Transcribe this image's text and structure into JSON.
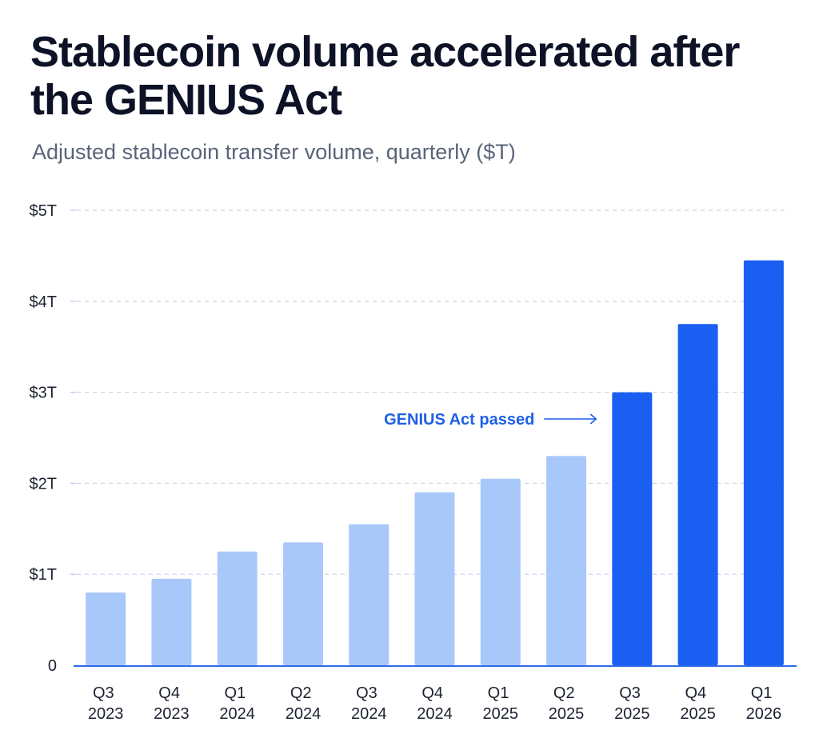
{
  "chart_data": {
    "type": "bar",
    "title": "Stablecoin volume accelerated after the GENIUS Act",
    "subtitle": "Adjusted stablecoin transfer volume, quarterly ($T)",
    "xlabel": "",
    "ylabel": "",
    "categories": [
      "Q3 2023",
      "Q4 2023",
      "Q1 2024",
      "Q2 2024",
      "Q3 2024",
      "Q4 2024",
      "Q1 2025",
      "Q2 2025",
      "Q3 2025",
      "Q4 2025",
      "Q1 2026"
    ],
    "values": [
      0.8,
      0.95,
      1.25,
      1.35,
      1.55,
      1.9,
      2.05,
      2.3,
      3.0,
      3.75,
      4.45
    ],
    "highlighted": [
      false,
      false,
      false,
      false,
      false,
      false,
      false,
      false,
      true,
      true,
      true
    ],
    "ylim": [
      0,
      5
    ],
    "yticks": [
      0,
      1,
      2,
      3,
      4,
      5
    ],
    "ytick_labels": [
      "0",
      "$1T",
      "$2T",
      "$3T",
      "$4T",
      "$5T"
    ],
    "grid": true,
    "annotation": {
      "text": "GENIUS Act passed"
    },
    "colors": {
      "bar": "#a9c8fa",
      "bar_highlight": "#1b5ef2",
      "annotation": "#1f5fe6",
      "axis": "#2d6bea",
      "grid": "#c8d8ee",
      "title": "#0d1226",
      "subtitle": "#5a6479"
    }
  }
}
